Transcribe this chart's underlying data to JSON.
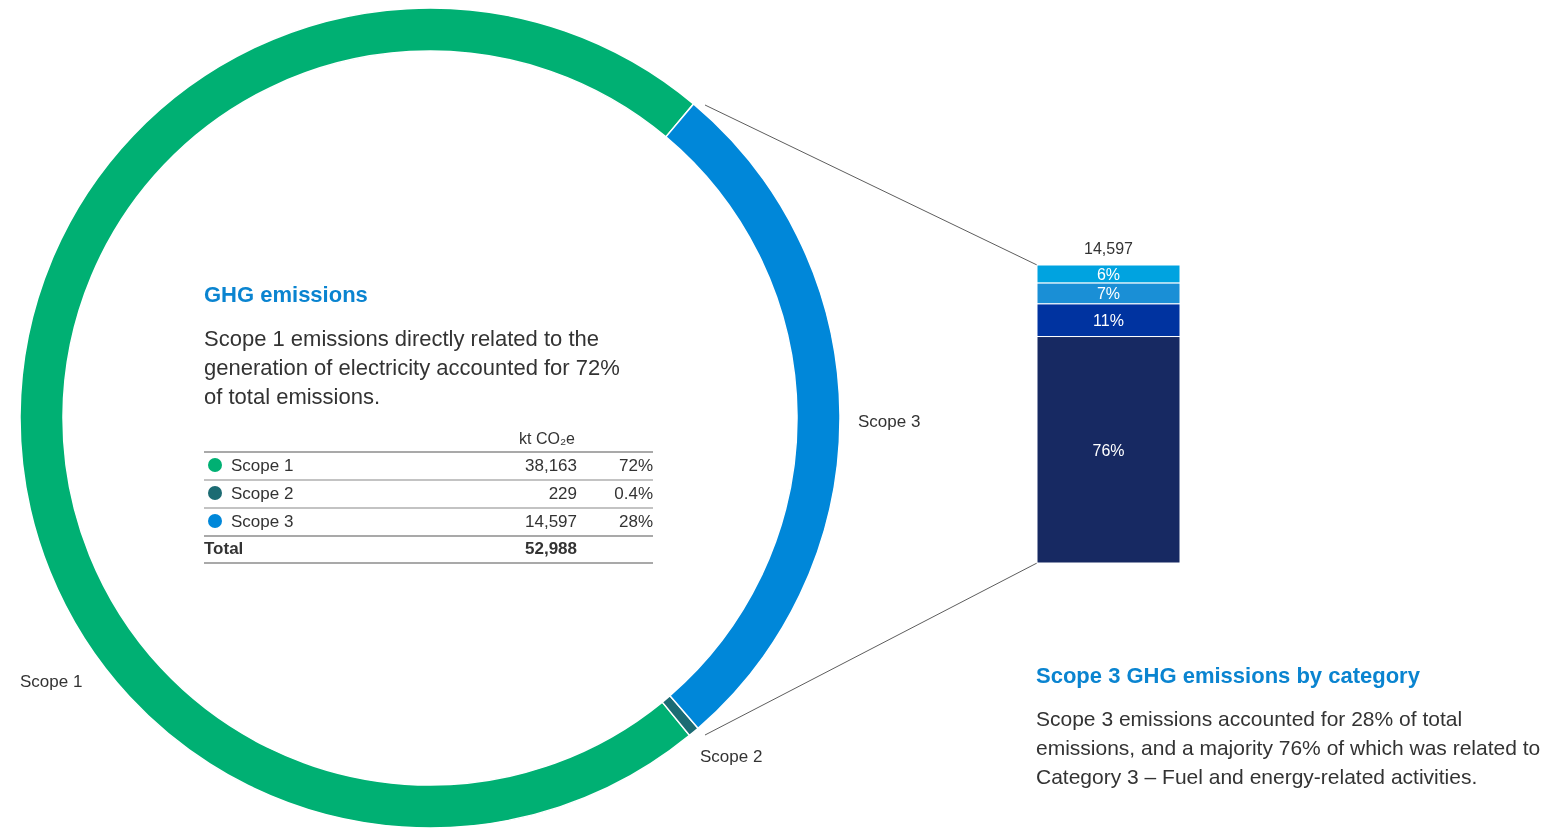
{
  "chart_data": [
    {
      "type": "donut",
      "title": "GHG emissions",
      "subtitle": "Scope 1 emissions directly related to the generation of electricity accounted for 72% of total emissions.",
      "categories": [
        "Scope 1",
        "Scope 2",
        "Scope 3"
      ],
      "values": [
        38163,
        229,
        14597
      ],
      "colors": [
        "#00b073",
        "#1c6b73",
        "#0087d9"
      ],
      "value_labels": [
        "38,163",
        "229",
        "14,597"
      ],
      "legend": "center",
      "annotations": [
        "kt CO₂e",
        "72%",
        "0.4%",
        "28%",
        "Total",
        "52,988"
      ]
    },
    {
      "type": "bar",
      "stacked": true,
      "title": "Scope 3 GHG emissions by category",
      "subtitle": "Scope 3 emissions accounted for 28% of total emissions, and a majority 76% of which was related to Category 3 – Fuel and energy-related activities.",
      "categories": [
        null
      ],
      "series": [
        {
          "color": "#172962",
          "values": [
            76
          ],
          "value_labels": [
            "76%"
          ]
        },
        {
          "color": "#0033a0",
          "values": [
            11
          ],
          "value_labels": [
            "11%"
          ]
        },
        {
          "color": "#1a8fd6",
          "values": [
            7
          ],
          "value_labels": [
            "7%"
          ]
        },
        {
          "color": "#00a3e0",
          "values": [
            6
          ],
          "value_labels": [
            "6%"
          ]
        }
      ],
      "annotations": [
        "14,597"
      ]
    }
  ]
}
